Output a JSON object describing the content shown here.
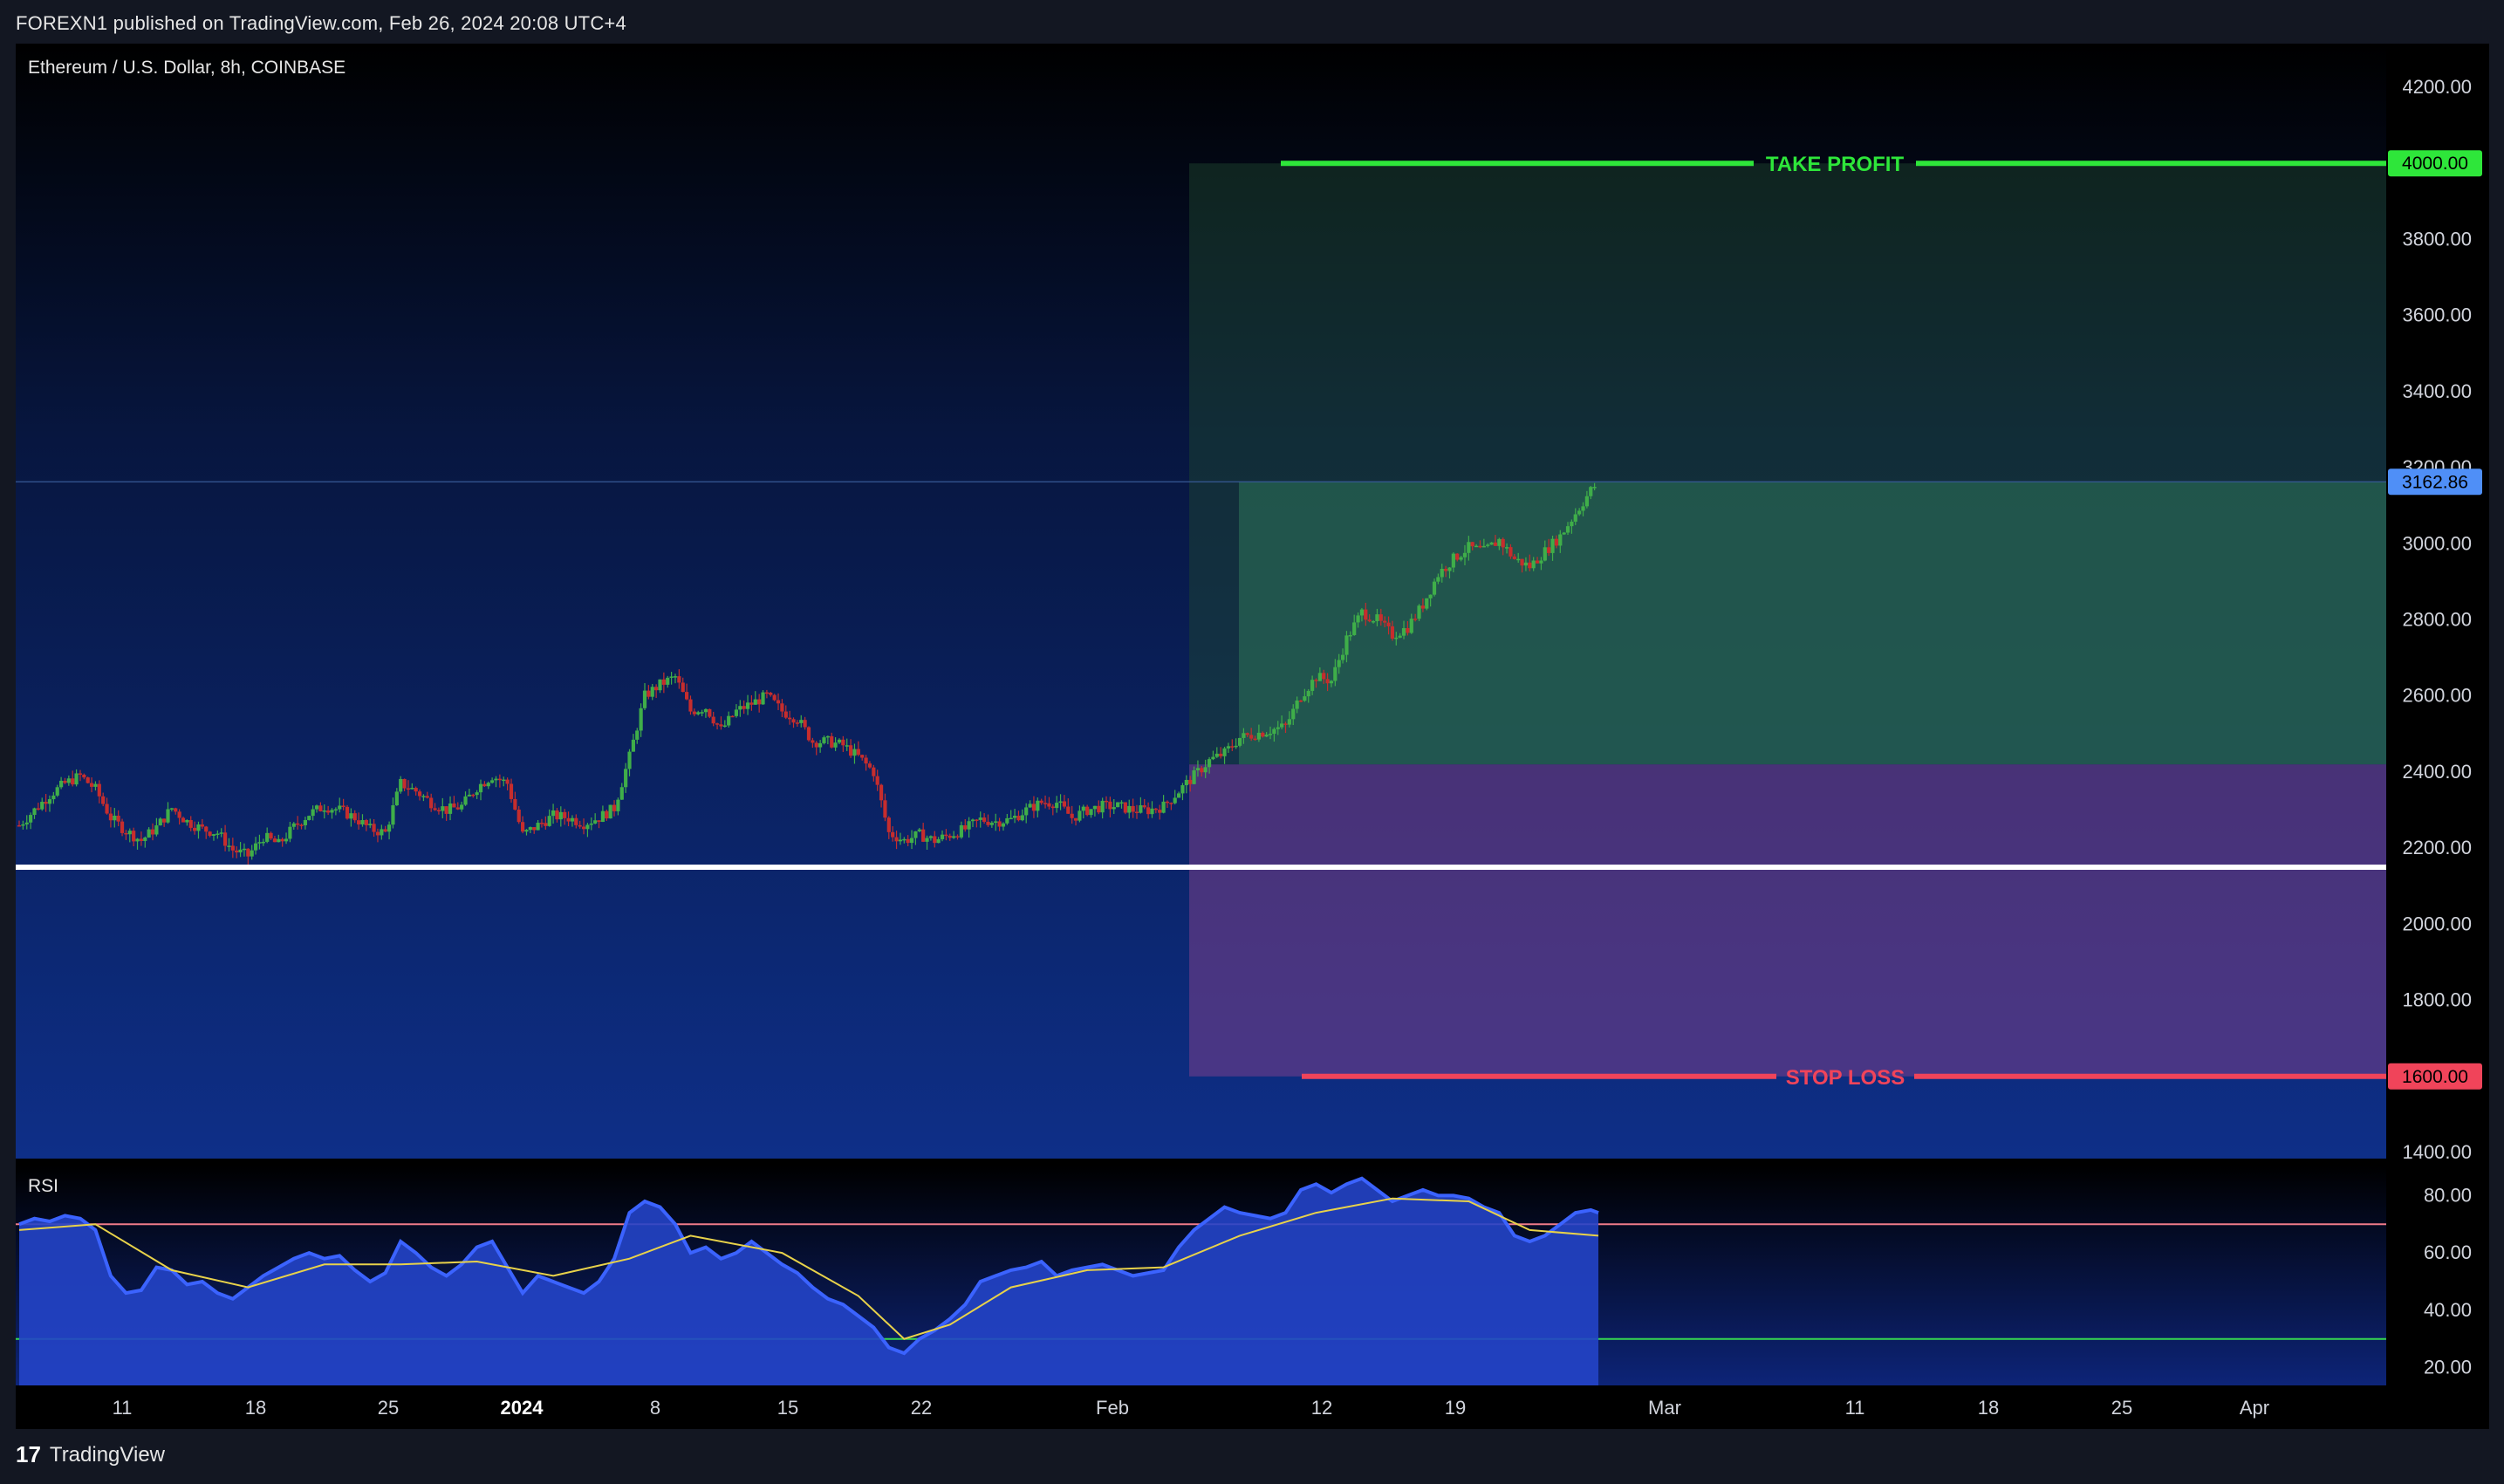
{
  "header": {
    "published": "FOREXN1 published on TradingView.com, Feb 26, 2024 20:08 UTC+4"
  },
  "footer": {
    "logo": "17",
    "brand": "TradingView"
  },
  "chart_data": {
    "type": "candlestick",
    "title": "Ethereum / U.S. Dollar, 8h, COINBASE",
    "y_ticks": [
      "4200.00",
      "3800.00",
      "3600.00",
      "3400.00",
      "3200.00",
      "3000.00",
      "2800.00",
      "2600.00",
      "2400.00",
      "2200.00",
      "2000.00",
      "1800.00",
      "1400.00"
    ],
    "ylim": [
      1400,
      4200
    ],
    "last_price": "3162.86",
    "take_profit": {
      "label": "TAKE PROFIT",
      "price": "4000.00"
    },
    "stop_loss": {
      "label": "STOP LOSS",
      "price": "1600.00"
    },
    "support_level": 2150,
    "position_entry": 2420,
    "x_ticks": [
      "11",
      "18",
      "25",
      "2024",
      "8",
      "15",
      "22",
      "Feb",
      "12",
      "19",
      "Mar",
      "11",
      "18",
      "25",
      "Apr"
    ],
    "close_path": [
      [
        0,
        2260
      ],
      [
        4,
        2300
      ],
      [
        8,
        2340
      ],
      [
        12,
        2370
      ],
      [
        16,
        2390
      ],
      [
        20,
        2355
      ],
      [
        24,
        2280
      ],
      [
        28,
        2245
      ],
      [
        32,
        2220
      ],
      [
        36,
        2255
      ],
      [
        40,
        2305
      ],
      [
        44,
        2270
      ],
      [
        48,
        2250
      ],
      [
        52,
        2240
      ],
      [
        56,
        2195
      ],
      [
        60,
        2180
      ],
      [
        64,
        2230
      ],
      [
        68,
        2210
      ],
      [
        72,
        2255
      ],
      [
        76,
        2290
      ],
      [
        80,
        2310
      ],
      [
        84,
        2300
      ],
      [
        88,
        2280
      ],
      [
        92,
        2250
      ],
      [
        96,
        2240
      ],
      [
        100,
        2370
      ],
      [
        104,
        2350
      ],
      [
        108,
        2320
      ],
      [
        112,
        2300
      ],
      [
        116,
        2310
      ],
      [
        120,
        2360
      ],
      [
        124,
        2390
      ],
      [
        128,
        2370
      ],
      [
        132,
        2235
      ],
      [
        136,
        2260
      ],
      [
        140,
        2285
      ],
      [
        144,
        2280
      ],
      [
        148,
        2265
      ],
      [
        152,
        2280
      ],
      [
        156,
        2305
      ],
      [
        160,
        2440
      ],
      [
        164,
        2600
      ],
      [
        168,
        2630
      ],
      [
        172,
        2650
      ],
      [
        176,
        2560
      ],
      [
        180,
        2570
      ],
      [
        184,
        2510
      ],
      [
        188,
        2560
      ],
      [
        192,
        2580
      ],
      [
        196,
        2600
      ],
      [
        200,
        2560
      ],
      [
        204,
        2540
      ],
      [
        208,
        2480
      ],
      [
        212,
        2480
      ],
      [
        216,
        2470
      ],
      [
        220,
        2440
      ],
      [
        224,
        2400
      ],
      [
        228,
        2240
      ],
      [
        232,
        2220
      ],
      [
        236,
        2235
      ],
      [
        240,
        2220
      ],
      [
        244,
        2235
      ],
      [
        248,
        2250
      ],
      [
        252,
        2275
      ],
      [
        256,
        2270
      ],
      [
        260,
        2275
      ],
      [
        264,
        2300
      ],
      [
        268,
        2320
      ],
      [
        272,
        2320
      ],
      [
        276,
        2280
      ],
      [
        280,
        2300
      ],
      [
        284,
        2310
      ],
      [
        288,
        2310
      ],
      [
        292,
        2300
      ],
      [
        296,
        2300
      ],
      [
        300,
        2310
      ],
      [
        304,
        2350
      ],
      [
        308,
        2390
      ],
      [
        312,
        2430
      ],
      [
        316,
        2450
      ],
      [
        320,
        2490
      ],
      [
        324,
        2500
      ],
      [
        328,
        2510
      ],
      [
        332,
        2520
      ],
      [
        336,
        2600
      ],
      [
        340,
        2650
      ],
      [
        344,
        2640
      ],
      [
        348,
        2750
      ],
      [
        352,
        2820
      ],
      [
        356,
        2800
      ],
      [
        360,
        2760
      ],
      [
        364,
        2780
      ],
      [
        368,
        2840
      ],
      [
        372,
        2920
      ],
      [
        376,
        2960
      ],
      [
        380,
        2990
      ],
      [
        384,
        2980
      ],
      [
        388,
        3010
      ],
      [
        392,
        2960
      ],
      [
        396,
        2940
      ],
      [
        400,
        2980
      ],
      [
        404,
        3020
      ],
      [
        408,
        3080
      ],
      [
        412,
        3140
      ],
      [
        414,
        3162.86
      ]
    ],
    "rsi": {
      "title": "RSI",
      "y_ticks": [
        "80.00",
        "60.00",
        "40.00",
        "20.00"
      ],
      "ylim": [
        15,
        85
      ],
      "overbought": 70,
      "oversold": 30,
      "values": [
        [
          0,
          70
        ],
        [
          4,
          72
        ],
        [
          8,
          71
        ],
        [
          12,
          73
        ],
        [
          16,
          72
        ],
        [
          20,
          68
        ],
        [
          24,
          52
        ],
        [
          28,
          46
        ],
        [
          32,
          47
        ],
        [
          36,
          55
        ],
        [
          40,
          54
        ],
        [
          44,
          49
        ],
        [
          48,
          50
        ],
        [
          52,
          46
        ],
        [
          56,
          44
        ],
        [
          60,
          48
        ],
        [
          64,
          52
        ],
        [
          68,
          55
        ],
        [
          72,
          58
        ],
        [
          76,
          60
        ],
        [
          80,
          58
        ],
        [
          84,
          59
        ],
        [
          88,
          54
        ],
        [
          92,
          50
        ],
        [
          96,
          53
        ],
        [
          100,
          64
        ],
        [
          104,
          60
        ],
        [
          108,
          55
        ],
        [
          112,
          52
        ],
        [
          116,
          56
        ],
        [
          120,
          62
        ],
        [
          124,
          64
        ],
        [
          128,
          55
        ],
        [
          132,
          46
        ],
        [
          136,
          52
        ],
        [
          140,
          50
        ],
        [
          144,
          48
        ],
        [
          148,
          46
        ],
        [
          152,
          50
        ],
        [
          156,
          58
        ],
        [
          160,
          74
        ],
        [
          164,
          78
        ],
        [
          168,
          76
        ],
        [
          172,
          70
        ],
        [
          176,
          60
        ],
        [
          180,
          62
        ],
        [
          184,
          58
        ],
        [
          188,
          60
        ],
        [
          192,
          64
        ],
        [
          196,
          60
        ],
        [
          200,
          56
        ],
        [
          204,
          53
        ],
        [
          208,
          48
        ],
        [
          212,
          44
        ],
        [
          216,
          42
        ],
        [
          220,
          38
        ],
        [
          224,
          34
        ],
        [
          228,
          27
        ],
        [
          232,
          25
        ],
        [
          236,
          30
        ],
        [
          240,
          33
        ],
        [
          244,
          37
        ],
        [
          248,
          42
        ],
        [
          252,
          50
        ],
        [
          256,
          52
        ],
        [
          260,
          54
        ],
        [
          264,
          55
        ],
        [
          268,
          57
        ],
        [
          272,
          52
        ],
        [
          276,
          54
        ],
        [
          280,
          55
        ],
        [
          284,
          56
        ],
        [
          288,
          54
        ],
        [
          292,
          52
        ],
        [
          296,
          53
        ],
        [
          300,
          54
        ],
        [
          304,
          62
        ],
        [
          308,
          68
        ],
        [
          312,
          72
        ],
        [
          316,
          76
        ],
        [
          320,
          74
        ],
        [
          324,
          73
        ],
        [
          328,
          72
        ],
        [
          332,
          74
        ],
        [
          336,
          82
        ],
        [
          340,
          84
        ],
        [
          344,
          81
        ],
        [
          348,
          84
        ],
        [
          352,
          86
        ],
        [
          356,
          82
        ],
        [
          360,
          78
        ],
        [
          364,
          80
        ],
        [
          368,
          82
        ],
        [
          372,
          80
        ],
        [
          376,
          80
        ],
        [
          380,
          79
        ],
        [
          384,
          76
        ],
        [
          388,
          74
        ],
        [
          392,
          66
        ],
        [
          396,
          64
        ],
        [
          400,
          66
        ],
        [
          404,
          70
        ],
        [
          408,
          74
        ],
        [
          412,
          75
        ],
        [
          414,
          74
        ]
      ],
      "ma_values": [
        [
          0,
          68
        ],
        [
          20,
          70
        ],
        [
          40,
          54
        ],
        [
          60,
          48
        ],
        [
          80,
          56
        ],
        [
          100,
          56
        ],
        [
          120,
          57
        ],
        [
          140,
          52
        ],
        [
          160,
          58
        ],
        [
          176,
          66
        ],
        [
          200,
          60
        ],
        [
          220,
          45
        ],
        [
          232,
          30
        ],
        [
          244,
          35
        ],
        [
          260,
          48
        ],
        [
          280,
          54
        ],
        [
          300,
          55
        ],
        [
          320,
          66
        ],
        [
          340,
          74
        ],
        [
          360,
          79
        ],
        [
          380,
          78
        ],
        [
          396,
          68
        ],
        [
          414,
          66
        ]
      ]
    }
  }
}
